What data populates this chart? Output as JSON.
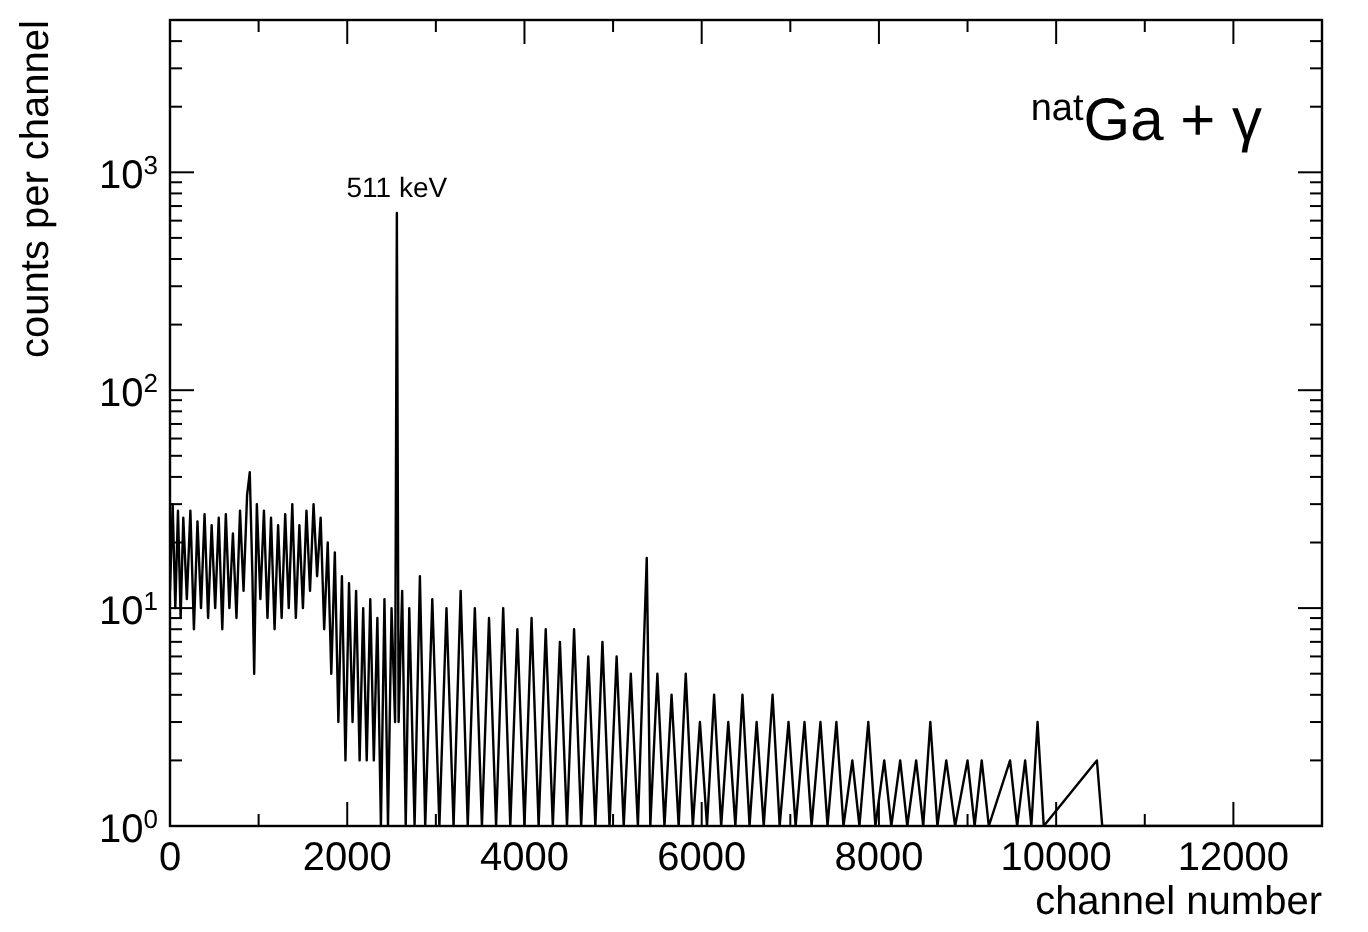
{
  "chart_data": {
    "type": "line",
    "xlabel": "channel number",
    "ylabel": "counts per channel",
    "annotations": [
      "$^{nat}$Ga + γ",
      {
        "text": "511 keV",
        "x": 2560,
        "y": 650
      }
    ],
    "log": "y",
    "grid": false,
    "marker": "none",
    "line_style": "solid",
    "xlim": [
      0,
      13000
    ],
    "ylim": [
      1,
      5000
    ],
    "xticks": [
      0,
      {
        "value": 1000,
        "label": null
      },
      2000,
      {
        "value": 3000,
        "label": null
      },
      4000,
      {
        "value": 5000,
        "label": null
      },
      6000,
      {
        "value": 7000,
        "label": null
      },
      8000,
      {
        "value": 9000,
        "label": null
      },
      10000,
      {
        "value": 11000,
        "label": null
      },
      12000
    ],
    "yticks": [
      {
        "value": 1,
        "label": "10$^{0}$"
      },
      {
        "value": 2,
        "label": null
      },
      {
        "value": 3,
        "label": null
      },
      {
        "value": 4,
        "label": null
      },
      {
        "value": 5,
        "label": null
      },
      {
        "value": 6,
        "label": null
      },
      {
        "value": 7,
        "label": null
      },
      {
        "value": 8,
        "label": null
      },
      {
        "value": 9,
        "label": null
      },
      {
        "value": 10,
        "label": "10$^{1}$"
      },
      {
        "value": 20,
        "label": null
      },
      {
        "value": 30,
        "label": null
      },
      {
        "value": 40,
        "label": null
      },
      {
        "value": 50,
        "label": null
      },
      {
        "value": 60,
        "label": null
      },
      {
        "value": 70,
        "label": null
      },
      {
        "value": 80,
        "label": null
      },
      {
        "value": 90,
        "label": null
      },
      {
        "value": 100,
        "label": "10$^{2}$"
      },
      {
        "value": 200,
        "label": null
      },
      {
        "value": 300,
        "label": null
      },
      {
        "value": 400,
        "label": null
      },
      {
        "value": 500,
        "label": null
      },
      {
        "value": 600,
        "label": null
      },
      {
        "value": 700,
        "label": null
      },
      {
        "value": 800,
        "label": null
      },
      {
        "value": 900,
        "label": null
      },
      {
        "value": 1000,
        "label": "10$^{3}$"
      },
      {
        "value": 2000,
        "label": null
      },
      {
        "value": 3000,
        "label": null
      },
      {
        "value": 4000,
        "label": null
      },
      {
        "value": 5000,
        "label": null
      }
    ],
    "series": [
      {
        "color": "#000000",
        "x": [
          0,
          30,
          60,
          90,
          120,
          150,
          190,
          230,
          270,
          310,
          350,
          390,
          430,
          470,
          510,
          550,
          590,
          630,
          670,
          710,
          750,
          790,
          830,
          870,
          900,
          930,
          950,
          980,
          1020,
          1060,
          1100,
          1140,
          1180,
          1220,
          1260,
          1300,
          1340,
          1380,
          1420,
          1460,
          1500,
          1540,
          1580,
          1620,
          1660,
          1700,
          1740,
          1780,
          1820,
          1860,
          1900,
          1940,
          1980,
          2020,
          2060,
          2100,
          2140,
          2180,
          2220,
          2260,
          2300,
          2340,
          2380,
          2420,
          2460,
          2500,
          2540,
          2560,
          2580,
          2620,
          2660,
          2700,
          2760,
          2820,
          2880,
          2960,
          3040,
          3120,
          3200,
          3280,
          3360,
          3440,
          3520,
          3600,
          3680,
          3760,
          3840,
          3920,
          4000,
          4080,
          4160,
          4240,
          4320,
          4400,
          4480,
          4560,
          4640,
          4720,
          4800,
          4880,
          4960,
          5040,
          5120,
          5200,
          5280,
          5380,
          5420,
          5500,
          5580,
          5660,
          5740,
          5820,
          5900,
          5980,
          6060,
          6140,
          6220,
          6300,
          6380,
          6460,
          6540,
          6620,
          6700,
          6800,
          6880,
          6980,
          7060,
          7160,
          7240,
          7340,
          7420,
          7520,
          7600,
          7700,
          7780,
          7880,
          7960,
          8060,
          8140,
          8240,
          8320,
          8420,
          8500,
          8580,
          8660,
          8760,
          8860,
          9000,
          9080,
          9160,
          9240,
          9480,
          9560,
          9650,
          9720,
          9790,
          9860,
          10460,
          10520,
          13000
        ],
        "values": [
          12,
          30,
          10,
          28,
          9,
          26,
          11,
          28,
          8,
          25,
          10,
          27,
          9,
          24,
          10,
          26,
          8,
          27,
          10,
          22,
          9,
          28,
          12,
          33,
          42,
          14,
          5,
          30,
          11,
          28,
          9,
          26,
          8,
          24,
          9,
          27,
          10,
          30,
          9,
          24,
          10,
          28,
          12,
          30,
          14,
          26,
          8,
          20,
          5,
          18,
          3,
          14,
          2,
          13,
          3,
          12,
          2,
          10,
          2,
          11,
          2,
          9,
          1,
          11,
          1,
          10,
          3,
          650,
          3,
          12,
          1,
          10,
          1,
          14,
          1,
          11,
          1,
          10,
          1,
          12,
          1,
          10,
          1,
          9,
          1,
          10,
          1,
          8,
          1,
          9,
          1,
          8,
          1,
          7,
          1,
          8,
          1,
          6,
          1,
          7,
          1,
          6,
          1,
          5,
          1,
          17,
          1,
          5,
          1,
          4,
          1,
          5,
          1,
          3,
          1,
          4,
          1,
          3,
          1,
          4,
          1,
          3,
          1,
          4,
          1,
          3,
          1,
          3,
          1,
          3,
          1,
          3,
          1,
          2,
          1,
          3,
          1,
          2,
          1,
          2,
          1,
          2,
          1,
          3,
          1,
          2,
          1,
          2,
          1,
          2,
          1,
          2,
          1,
          2,
          1,
          3,
          1,
          2,
          1,
          1
        ]
      }
    ]
  }
}
